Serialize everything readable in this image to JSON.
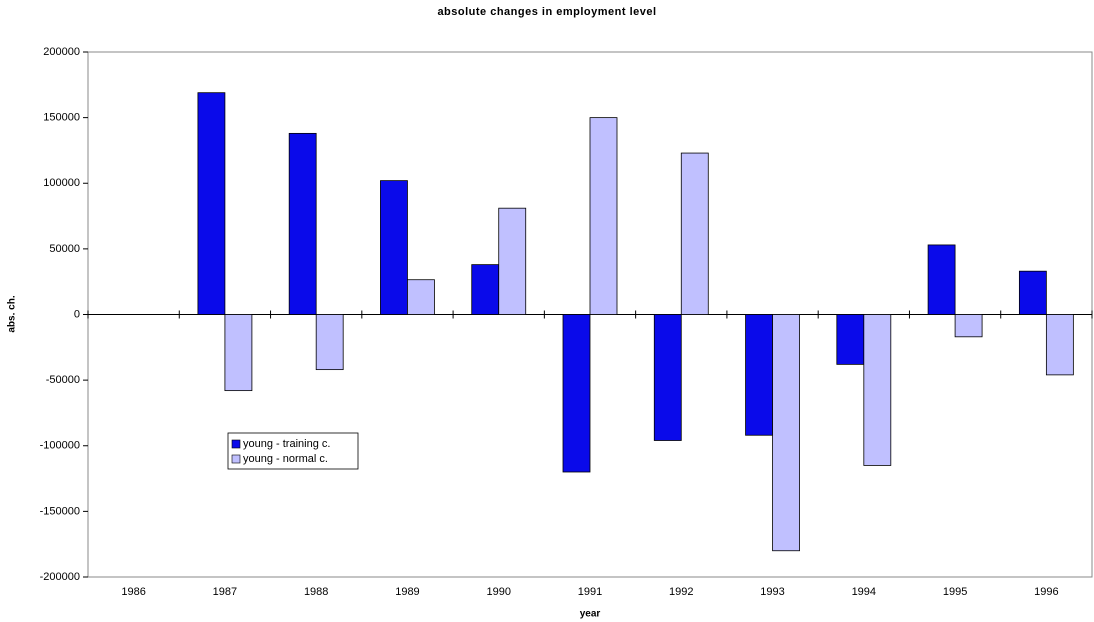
{
  "chart_data": {
    "type": "bar",
    "title": "absolute changes in employment level",
    "x_label": "year",
    "y_label": "abs. ch.",
    "categories": [
      "1986",
      "1987",
      "1988",
      "1989",
      "1990",
      "1991",
      "1992",
      "1993",
      "1994",
      "1995",
      "1996"
    ],
    "series": [
      {
        "name": "young - training c.",
        "color": "#0a0aea",
        "values": [
          null,
          169000,
          138000,
          102000,
          38000,
          -120000,
          -96000,
          -92000,
          -38000,
          53000,
          33000
        ]
      },
      {
        "name": "young - normal c.",
        "color": "#c0c0ff",
        "values": [
          null,
          -58000,
          -42000,
          26500,
          81000,
          150000,
          123000,
          -180000,
          -115000,
          -17000,
          -46000
        ]
      }
    ],
    "ylim": [
      -200000,
      200000
    ],
    "yticks": [
      -200000,
      -150000,
      -100000,
      -50000,
      0,
      50000,
      100000,
      150000,
      200000
    ],
    "legend": "lower-left"
  }
}
